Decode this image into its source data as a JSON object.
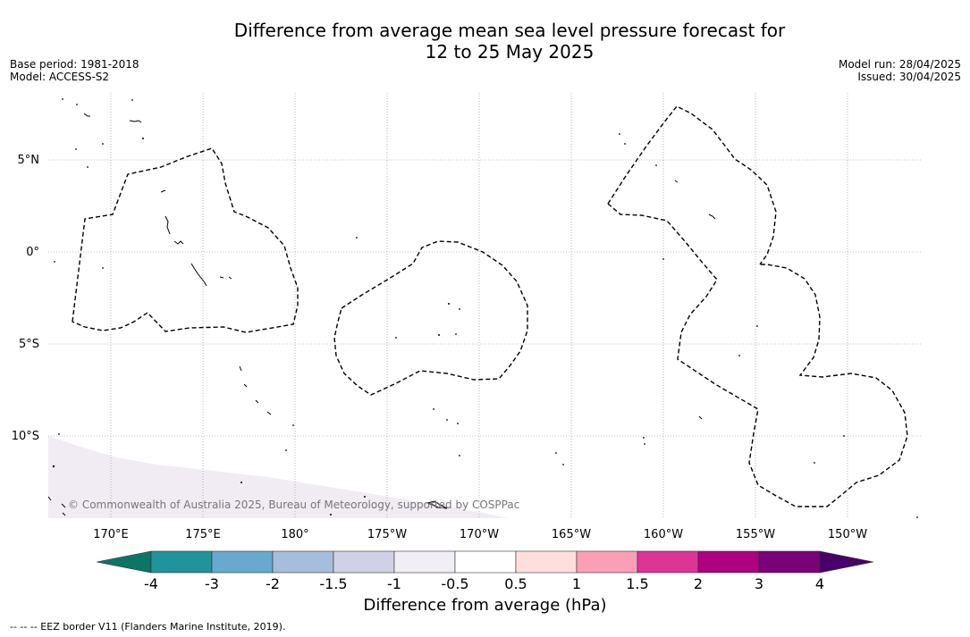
{
  "title_line1": "Difference from average mean sea level pressure forecast for",
  "title_line2": "12 to 25 May 2025",
  "meta_left": [
    "Base period: 1981-2018",
    "Model: ACCESS-S2"
  ],
  "meta_right": [
    "Model run: 28/04/2025",
    "Issued: 30/04/2025"
  ],
  "map": {
    "lat_labels": [
      "5°N",
      "0°",
      "5°S",
      "10°S"
    ],
    "lon_labels": [
      "170°E",
      "175°E",
      "180°",
      "175°W",
      "170°W",
      "165°W",
      "160°W",
      "155°W",
      "150°W"
    ],
    "copyright": "© Commonwealth of Australia 2025, Bureau of Meteorology, supported by COSPPac",
    "shading_color": "#f1ecf3",
    "gridline_style": "dotted"
  },
  "colorbar": {
    "ticks": [
      "-4",
      "-3",
      "-2",
      "-1.5",
      "-1",
      "-0.5",
      "0.5",
      "1",
      "1.5",
      "2",
      "3",
      "4"
    ],
    "colors": [
      "#0d7468",
      "#21939a",
      "#67a9cf",
      "#a6bddb",
      "#d0d1e6",
      "#f1eef6",
      "#ffffff",
      "#fde0dd",
      "#fa9fb5",
      "#dd3497",
      "#ae017e",
      "#7a0177",
      "#49006a"
    ],
    "label": "Difference from average (hPa)"
  },
  "footnote": "--  --  -- EEZ border V11 (Flanders Marine Institute, 2019)."
}
